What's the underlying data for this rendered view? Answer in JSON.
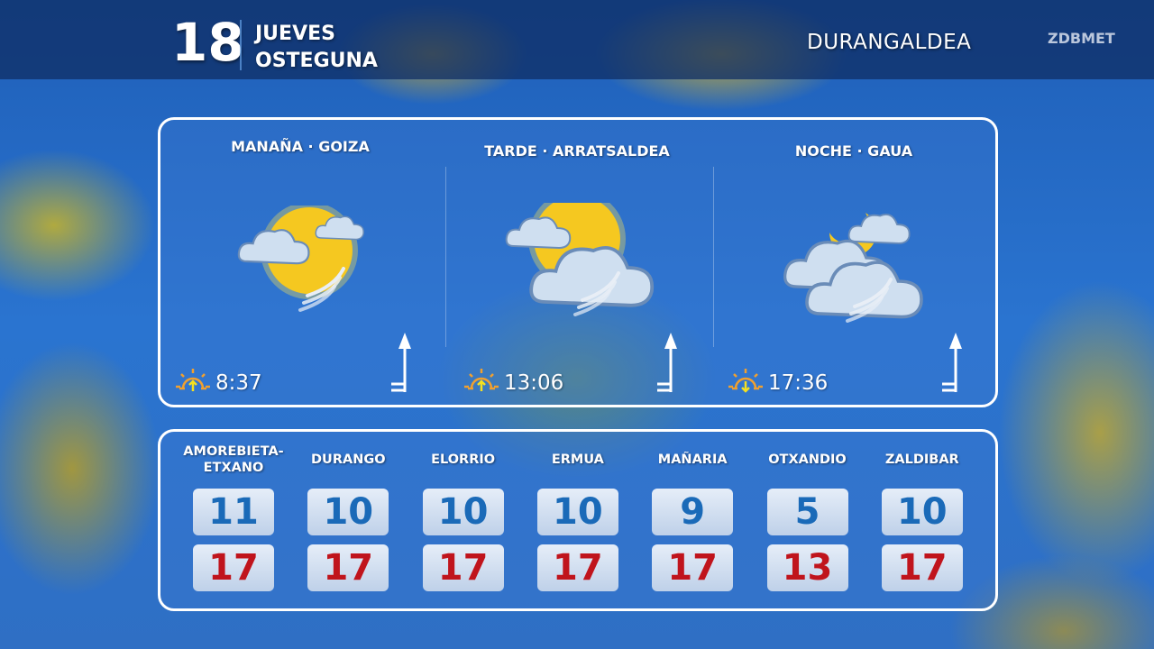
{
  "header": {
    "day_number": "18",
    "day_name_es": "JUEVES",
    "day_name_eu": "OSTEGUNA",
    "region": "DURANGALDEA",
    "brand": "ZDBMET"
  },
  "periods": [
    {
      "label": "MANAÑA · GOIZA",
      "icon": "sun-cloud-wind-icon",
      "sun_icon": "sunrise-icon",
      "time": "8:37",
      "wind_icon": "wind-barb-north-icon"
    },
    {
      "label": "TARDE · ARRATSALDEA",
      "icon": "sun-cloud-wind-icon",
      "sun_icon": "sun-noon-icon",
      "time": "13:06",
      "wind_icon": "wind-barb-north-icon"
    },
    {
      "label": "NOCHE · GAUA",
      "icon": "moon-clouds-wind-icon",
      "sun_icon": "sunset-icon",
      "time": "17:36",
      "wind_icon": "wind-barb-north-icon"
    }
  ],
  "towns": [
    {
      "name": "AMOREBIETA-ETXANO",
      "min": "11",
      "max": "17"
    },
    {
      "name": "DURANGO",
      "min": "10",
      "max": "17"
    },
    {
      "name": "ELORRIO",
      "min": "10",
      "max": "17"
    },
    {
      "name": "ERMUA",
      "min": "10",
      "max": "17"
    },
    {
      "name": "MAÑARIA",
      "min": "9",
      "max": "17"
    },
    {
      "name": "OTXANDIO",
      "min": "5",
      "max": "13"
    },
    {
      "name": "ZALDIBAR",
      "min": "10",
      "max": "17"
    }
  ],
  "colors": {
    "min_temp": "#1a6ab8",
    "max_temp": "#c0141c",
    "sun_icon": "#f0a030",
    "arrow": "#f4e020"
  }
}
